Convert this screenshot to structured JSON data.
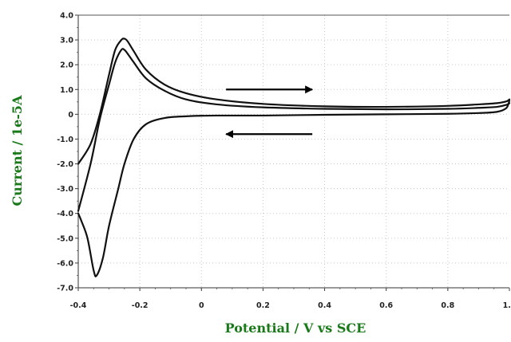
{
  "chart_data": {
    "type": "line",
    "title": "",
    "xlabel": "Potential / V vs SCE",
    "ylabel": "Current / 1e-5A",
    "xlim": [
      -0.4,
      1.0
    ],
    "ylim": [
      -7.0,
      4.0
    ],
    "grid": true,
    "legend": "none",
    "x_tick_labels": [
      "-0.4",
      "-0.2",
      "0",
      "0.2",
      "0.4",
      "0.6",
      "0.8",
      "1.0"
    ],
    "x_tick_values": [
      -0.4,
      -0.2,
      0,
      0.2,
      0.4,
      0.6,
      0.8,
      1.0
    ],
    "y_tick_labels": [
      "4.0",
      "3.0",
      "2.0",
      "1.0",
      "0",
      "-1.0",
      "-2.0",
      "-3.0",
      "-4.0",
      "-5.0",
      "-6.0",
      "-7.0"
    ],
    "y_tick_values": [
      4,
      3,
      2,
      1,
      0,
      -1,
      -2,
      -3,
      -4,
      -5,
      -6,
      -7
    ],
    "series": [
      {
        "color": "#111111",
        "x": [
          -0.4,
          -0.36,
          -0.33,
          -0.3,
          -0.28,
          -0.26,
          -0.25,
          -0.24,
          -0.22,
          -0.18,
          -0.12,
          -0.05,
          0.05,
          0.2,
          0.4,
          0.6,
          0.8,
          0.9,
          0.96,
          0.99,
          1.0
        ],
        "y": [
          -2.0,
          -1.2,
          0.0,
          1.6,
          2.6,
          3.0,
          3.05,
          2.95,
          2.55,
          1.8,
          1.2,
          0.85,
          0.6,
          0.42,
          0.32,
          0.3,
          0.34,
          0.4,
          0.45,
          0.52,
          0.6
        ]
      },
      {
        "color": "#111111",
        "x": [
          -0.4,
          -0.36,
          -0.33,
          -0.3,
          -0.28,
          -0.26,
          -0.25,
          -0.24,
          -0.22,
          -0.18,
          -0.12,
          -0.05,
          0.05,
          0.2,
          0.4,
          0.6,
          0.8,
          0.9,
          0.96,
          0.99,
          1.0
        ],
        "y": [
          -3.9,
          -2.0,
          -0.2,
          1.2,
          2.1,
          2.6,
          2.6,
          2.45,
          2.1,
          1.45,
          0.95,
          0.6,
          0.4,
          0.28,
          0.22,
          0.2,
          0.22,
          0.26,
          0.3,
          0.38,
          0.45
        ]
      },
      {
        "color": "#111111",
        "x": [
          1.0,
          0.99,
          0.96,
          0.9,
          0.8,
          0.6,
          0.4,
          0.2,
          0.05,
          -0.05,
          -0.12,
          -0.18,
          -0.22,
          -0.25,
          -0.27,
          -0.3,
          -0.32,
          -0.34,
          -0.35,
          -0.37,
          -0.39,
          -0.4
        ],
        "y": [
          0.55,
          0.25,
          0.1,
          0.05,
          0.02,
          0.0,
          -0.02,
          -0.05,
          -0.05,
          -0.08,
          -0.15,
          -0.4,
          -1.0,
          -2.0,
          -3.0,
          -4.5,
          -5.8,
          -6.5,
          -6.3,
          -5.0,
          -4.3,
          -4.0
        ]
      }
    ],
    "annotations": [
      {
        "type": "arrow",
        "direction": "right",
        "from": [
          0.08,
          1.0
        ],
        "to": [
          0.36,
          1.0
        ]
      },
      {
        "type": "arrow",
        "direction": "left",
        "from": [
          0.36,
          -0.8
        ],
        "to": [
          0.08,
          -0.8
        ]
      }
    ]
  }
}
